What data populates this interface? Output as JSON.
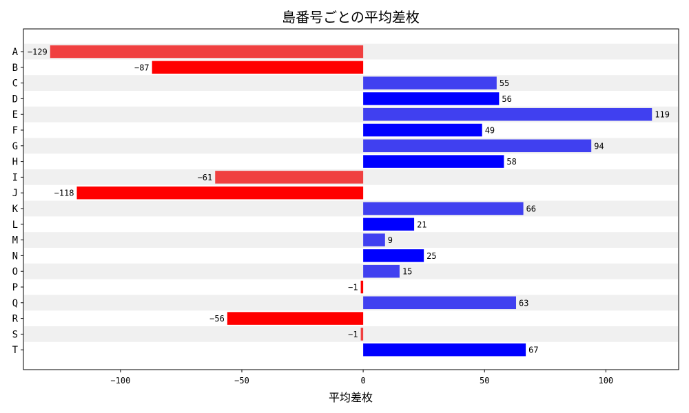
{
  "chart_data": {
    "type": "bar",
    "orientation": "horizontal",
    "title": "島番号ごとの平均差枚",
    "xlabel": "平均差枚",
    "ylabel": "",
    "xlim": [
      -140,
      130
    ],
    "xticks": [
      -100,
      -50,
      0,
      50,
      100
    ],
    "xtick_labels": [
      "−100",
      "−50",
      "0",
      "50",
      "100"
    ],
    "categories": [
      "A",
      "B",
      "C",
      "D",
      "E",
      "F",
      "G",
      "H",
      "I",
      "J",
      "K",
      "L",
      "M",
      "N",
      "O",
      "P",
      "Q",
      "R",
      "S",
      "T"
    ],
    "values": [
      -129,
      -87,
      55,
      56,
      119,
      49,
      94,
      58,
      -61,
      -118,
      66,
      21,
      9,
      25,
      15,
      -1,
      63,
      -56,
      -1,
      67
    ],
    "value_labels": [
      "−129",
      "−87",
      "55",
      "56",
      "119",
      "49",
      "94",
      "58",
      "−61",
      "−118",
      "66",
      "21",
      "9",
      "25",
      "15",
      "−1",
      "63",
      "−56",
      "−1",
      "67"
    ],
    "colors": {
      "positive_even": "#4040f0",
      "positive_odd": "#0000ff",
      "negative_even": "#f04040",
      "negative_odd": "#ff0000",
      "stripe": "#f0f0f0"
    },
    "grid": false,
    "striped_rows": true
  }
}
